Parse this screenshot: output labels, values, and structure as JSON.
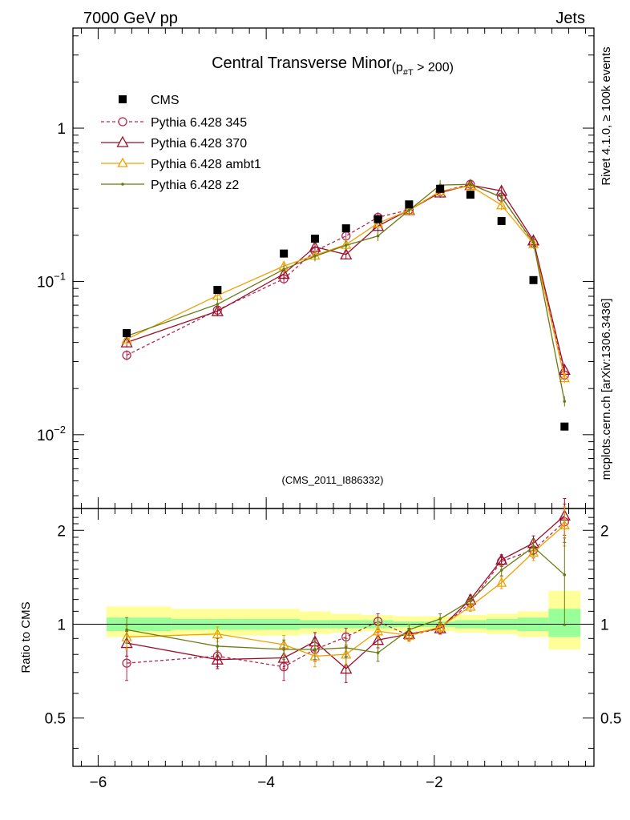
{
  "header": {
    "left": "7000 GeV pp",
    "right": "Jets"
  },
  "side_labels": {
    "rivet": "Rivet 4.1.0, ≥ 100k events",
    "mcplots": "mcplots.cern.ch [arXiv:1306.3436]"
  },
  "chart_data": {
    "type": "line",
    "title_main": "Central Transverse Minor",
    "title_sub": "(p",
    "title_sub_idx": "#T",
    "title_sub_tail": " > 200)",
    "analysis_id": "(CMS_2011_I886332)",
    "xlim": [
      -6.3,
      -0.1
    ],
    "main_panel": {
      "yscale": "log",
      "ylim": [
        0.0033,
        4.5
      ],
      "ytick_labels": [
        "1",
        "10",
        "10"
      ],
      "ytick_exps": [
        "",
        "−1",
        "−2"
      ]
    },
    "ratio_panel": {
      "ylabel": "Ratio to CMS",
      "ylim": [
        0.35,
        2.35
      ],
      "yticks": [
        0.5,
        1,
        2
      ],
      "ytick_labels": [
        "0.5",
        "1",
        "2"
      ]
    },
    "xticks": [
      -6,
      -4,
      -2
    ],
    "xtick_labels": [
      "−6",
      "−4",
      "−2"
    ],
    "x": [
      -5.66,
      -4.58,
      -3.79,
      -3.42,
      -3.05,
      -2.67,
      -2.3,
      -1.93,
      -1.57,
      -1.2,
      -0.82,
      -0.45
    ],
    "bins": [
      [
        -5.9,
        -5.13
      ],
      [
        -5.13,
        -4.23
      ],
      [
        -4.23,
        -3.6
      ],
      [
        -3.6,
        -3.23
      ],
      [
        -3.23,
        -2.86
      ],
      [
        -2.86,
        -2.49
      ],
      [
        -2.49,
        -2.12
      ],
      [
        -2.12,
        -1.75
      ],
      [
        -1.75,
        -1.38
      ],
      [
        -1.38,
        -1.01
      ],
      [
        -1.01,
        -0.64
      ],
      [
        -0.64,
        -0.26
      ]
    ],
    "cms_band_inner": [
      [
        0.95,
        1.05
      ],
      [
        0.96,
        1.04
      ],
      [
        0.96,
        1.04
      ],
      [
        0.97,
        1.03
      ],
      [
        0.97,
        1.03
      ],
      [
        0.97,
        1.03
      ],
      [
        0.98,
        1.02
      ],
      [
        0.98,
        1.02
      ],
      [
        0.97,
        1.03
      ],
      [
        0.96,
        1.04
      ],
      [
        0.95,
        1.05
      ],
      [
        0.91,
        1.12
      ]
    ],
    "cms_band_outer": [
      [
        0.91,
        1.14
      ],
      [
        0.92,
        1.12
      ],
      [
        0.92,
        1.12
      ],
      [
        0.93,
        1.1
      ],
      [
        0.94,
        1.08
      ],
      [
        0.95,
        1.07
      ],
      [
        0.95,
        1.06
      ],
      [
        0.95,
        1.06
      ],
      [
        0.94,
        1.07
      ],
      [
        0.93,
        1.08
      ],
      [
        0.91,
        1.1
      ],
      [
        0.83,
        1.28
      ]
    ],
    "series": [
      {
        "name": "CMS",
        "color": "#000000",
        "marker": "square",
        "values": [
          0.046,
          0.088,
          0.152,
          0.19,
          0.222,
          0.255,
          0.318,
          0.402,
          0.368,
          0.248,
          0.102,
          0.0113
        ]
      },
      {
        "name": "Pythia 6.428 345",
        "color": "#b22a52",
        "marker": "circle-open",
        "dash": true,
        "values": [
          0.033,
          0.065,
          0.104,
          0.158,
          0.198,
          0.262,
          0.293,
          0.385,
          0.43,
          0.355,
          0.178,
          0.0245
        ],
        "ratio": [
          0.75,
          0.79,
          0.73,
          0.83,
          0.91,
          1.02,
          0.92,
          0.97,
          1.17,
          1.59,
          1.73,
          2.13
        ],
        "ratio_err": [
          0.09,
          0.06,
          0.07,
          0.07,
          0.06,
          0.06,
          0.04,
          0.04,
          0.04,
          0.06,
          0.1,
          0.3
        ]
      },
      {
        "name": "Pythia 6.428 370",
        "color": "#9b0f2a",
        "marker": "triangle-open",
        "values": [
          0.04,
          0.064,
          0.112,
          0.168,
          0.15,
          0.23,
          0.292,
          0.38,
          0.425,
          0.39,
          0.185,
          0.0265
        ],
        "ratio": [
          0.87,
          0.77,
          0.78,
          0.88,
          0.72,
          0.89,
          0.93,
          0.97,
          1.2,
          1.61,
          1.82,
          2.23
        ],
        "ratio_err": [
          0.08,
          0.05,
          0.06,
          0.06,
          0.07,
          0.05,
          0.04,
          0.04,
          0.04,
          0.06,
          0.1,
          0.3
        ]
      },
      {
        "name": "Pythia 6.428 ambt1",
        "color": "#f0a000",
        "marker": "triangle-open",
        "values": [
          0.042,
          0.081,
          0.126,
          0.148,
          0.174,
          0.24,
          0.291,
          0.388,
          0.42,
          0.315,
          0.176,
          0.0235
        ],
        "ratio": [
          0.91,
          0.93,
          0.86,
          0.79,
          0.8,
          0.95,
          0.92,
          0.98,
          1.14,
          1.36,
          1.7,
          2.08
        ],
        "ratio_err": [
          0.08,
          0.05,
          0.06,
          0.06,
          0.06,
          0.05,
          0.04,
          0.04,
          0.04,
          0.06,
          0.1,
          0.3
        ]
      },
      {
        "name": "Pythia 6.428 z2",
        "color": "#6b7a12",
        "marker": "dot",
        "values": [
          0.044,
          0.071,
          0.12,
          0.146,
          0.172,
          0.198,
          0.291,
          0.425,
          0.43,
          0.355,
          0.18,
          0.0165
        ],
        "ratio": [
          0.96,
          0.85,
          0.83,
          0.83,
          0.84,
          0.81,
          0.96,
          1.04,
          1.19,
          1.49,
          1.77,
          1.44
        ],
        "ratio_err": [
          0.09,
          0.05,
          0.06,
          0.06,
          0.06,
          0.05,
          0.04,
          0.04,
          0.04,
          0.06,
          0.1,
          0.45
        ]
      }
    ]
  }
}
